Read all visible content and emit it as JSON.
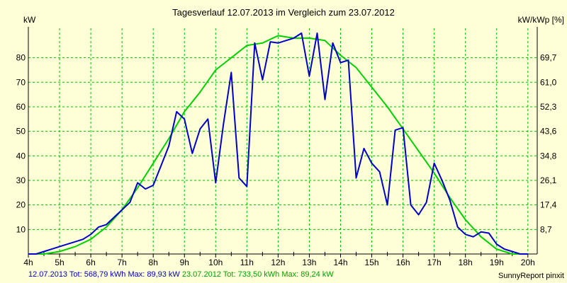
{
  "chart_data": {
    "type": "line",
    "title": "Tagesverlauf 12.07.2013 im Vergleich zum 23.07.2012",
    "ylabel": "kW",
    "ylabel_right": "kW/kWp [%]",
    "x_ticks": [
      "4h",
      "5h",
      "6h",
      "7h",
      "8h",
      "9h",
      "10h",
      "11h",
      "12h",
      "13h",
      "14h",
      "15h",
      "16h",
      "17h",
      "18h",
      "19h",
      "20h"
    ],
    "xlim": [
      4,
      20.3
    ],
    "ylim": [
      0,
      92
    ],
    "y_ticks": [
      10,
      20,
      30,
      40,
      50,
      60,
      70,
      80
    ],
    "y_ticks_right": [
      "8,7",
      "17,4",
      "26,1",
      "34,8",
      "43,6",
      "52,3",
      "61,0",
      "69,7"
    ],
    "grid": true,
    "series": [
      {
        "name": "12.07.2013",
        "color": "#0000c8",
        "summary": "12.07.2013 Tot: 568,79 kWh Max: 89,93 kW",
        "x": [
          4.0,
          4.25,
          4.5,
          4.75,
          5.0,
          5.25,
          5.5,
          5.75,
          6.0,
          6.25,
          6.5,
          6.75,
          7.0,
          7.25,
          7.5,
          7.75,
          8.0,
          8.25,
          8.5,
          8.75,
          9.0,
          9.25,
          9.5,
          9.75,
          10.0,
          10.25,
          10.5,
          10.75,
          11.0,
          11.25,
          11.5,
          11.75,
          12.0,
          12.25,
          12.5,
          12.75,
          13.0,
          13.25,
          13.5,
          13.75,
          14.0,
          14.25,
          14.5,
          14.75,
          15.0,
          15.25,
          15.5,
          15.75,
          16.0,
          16.25,
          16.5,
          16.75,
          17.0,
          17.25,
          17.5,
          17.75,
          18.0,
          18.25,
          18.5,
          18.75,
          19.0,
          19.25,
          19.5,
          19.75,
          20.0
        ],
        "y": [
          0,
          0,
          1,
          2,
          3,
          4,
          5,
          6,
          8,
          11,
          12,
          15,
          18,
          21,
          29,
          26.5,
          28,
          36,
          44,
          58,
          55,
          41,
          51,
          55,
          29,
          53,
          74,
          31,
          27.5,
          86,
          71,
          86.5,
          86,
          87,
          88,
          90,
          72.5,
          90,
          63,
          86,
          78,
          79,
          31,
          43,
          37,
          33.5,
          20,
          50.5,
          51.5,
          20,
          16,
          21,
          37,
          30,
          22,
          11,
          8,
          7,
          9,
          8.5,
          4,
          2,
          1,
          0,
          0
        ]
      },
      {
        "name": "23.07.2012",
        "color": "#00d000",
        "summary": "23.07.2012 Tot: 733,50 kWh Max: 89,24 kW",
        "x": [
          4.0,
          4.5,
          5.0,
          5.5,
          6.0,
          6.5,
          7.0,
          7.5,
          8.0,
          8.5,
          9.0,
          9.5,
          10.0,
          10.5,
          11.0,
          11.5,
          12.0,
          12.5,
          13.0,
          13.5,
          14.0,
          14.5,
          15.0,
          15.5,
          16.0,
          16.5,
          17.0,
          17.5,
          18.0,
          18.5,
          19.0,
          19.5,
          20.0
        ],
        "y": [
          0,
          0,
          1,
          3,
          6,
          11,
          18,
          27,
          37,
          47,
          58,
          66,
          75,
          80,
          85,
          86,
          89,
          88,
          88,
          87,
          81,
          76,
          68,
          60,
          51,
          42,
          33,
          23,
          14,
          7,
          2,
          0,
          0
        ]
      }
    ]
  },
  "footer": {
    "series1": "12.07.2013 Tot: 568,79 kWh Max: 89,93 kW",
    "series2": "23.07.2012 Tot: 733,50 kWh Max: 89,24 kW",
    "credit": "SunnyReport pinxit"
  }
}
